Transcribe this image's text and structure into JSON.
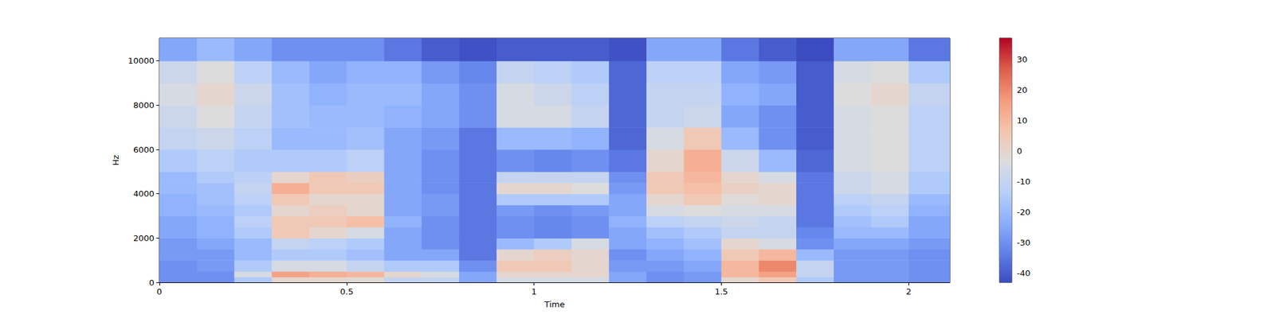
{
  "chart_data": {
    "type": "spectrogram",
    "x_label": "Time",
    "y_label": "Hz",
    "xlim": [
      0,
      2.11
    ],
    "ylim": [
      0,
      11025
    ],
    "xticks": [
      0,
      0.5,
      1,
      1.5,
      2
    ],
    "yticks": [
      0,
      2000,
      4000,
      6000,
      8000,
      10000
    ],
    "grid": false,
    "time_edges": [
      0,
      0.1,
      0.2,
      0.3,
      0.4,
      0.5,
      0.6,
      0.7,
      0.8,
      0.9,
      1.0,
      1.1,
      1.2,
      1.3,
      1.4,
      1.5,
      1.6,
      1.7,
      1.8,
      1.9,
      2.0,
      2.11
    ],
    "freq_edges": [
      0,
      250,
      500,
      1000,
      1500,
      2000,
      2500,
      3000,
      3500,
      4000,
      4500,
      5000,
      6000,
      7000,
      8000,
      9000,
      10000,
      11025
    ],
    "cells": [
      [
        -30,
        -30,
        -30,
        -28,
        -28,
        -25,
        -25,
        -22,
        -22,
        -20,
        -20,
        -15,
        -10,
        -8,
        -5,
        -8,
        -25
      ],
      [
        -30,
        -30,
        -28,
        -28,
        -25,
        -22,
        -22,
        -20,
        -18,
        -18,
        -15,
        -12,
        -8,
        -3,
        0,
        -3,
        -20
      ],
      [
        -15,
        -5,
        -15,
        -20,
        -20,
        -15,
        -12,
        -15,
        -12,
        -10,
        -12,
        -15,
        -12,
        -10,
        -8,
        -12,
        -25
      ],
      [
        0,
        15,
        -5,
        -15,
        -10,
        5,
        5,
        0,
        5,
        12,
        0,
        -15,
        -20,
        -18,
        -18,
        -20,
        -30
      ],
      [
        0,
        12,
        -5,
        -15,
        -12,
        0,
        5,
        3,
        0,
        5,
        5,
        -15,
        -20,
        -20,
        -22,
        -25,
        -30
      ],
      [
        -2,
        10,
        -10,
        -18,
        -15,
        -5,
        8,
        0,
        0,
        5,
        3,
        -12,
        -18,
        -20,
        -20,
        -22,
        -30
      ],
      [
        -10,
        0,
        -15,
        -25,
        -25,
        -25,
        -22,
        -25,
        -25,
        -25,
        -25,
        -25,
        -25,
        -22,
        -20,
        -22,
        -35
      ],
      [
        -10,
        -5,
        -15,
        -25,
        -30,
        -30,
        -30,
        -28,
        -28,
        -30,
        -30,
        -30,
        -28,
        -25,
        -25,
        -28,
        -40
      ],
      [
        -25,
        -25,
        -30,
        -35,
        -35,
        -35,
        -35,
        -35,
        -35,
        -35,
        -35,
        -35,
        -35,
        -30,
        -30,
        -32,
        -42
      ],
      [
        -5,
        0,
        5,
        0,
        -20,
        -30,
        -30,
        -28,
        -15,
        0,
        -10,
        -30,
        -20,
        -5,
        -5,
        -10,
        -40
      ],
      [
        -5,
        0,
        5,
        3,
        -15,
        -32,
        -32,
        -30,
        -15,
        0,
        -10,
        -32,
        -20,
        -5,
        -8,
        -12,
        -40
      ],
      [
        -5,
        0,
        0,
        0,
        -5,
        -30,
        -30,
        -28,
        -15,
        -3,
        -10,
        -30,
        -22,
        -10,
        -12,
        -15,
        -40
      ],
      [
        -25,
        -25,
        -28,
        -30,
        -25,
        -25,
        -22,
        -25,
        -25,
        -28,
        -30,
        -35,
        -38,
        -38,
        -38,
        -38,
        -42
      ],
      [
        -30,
        -30,
        -28,
        -25,
        -22,
        -18,
        -12,
        -5,
        0,
        5,
        5,
        0,
        -5,
        -10,
        -10,
        -12,
        -25
      ],
      [
        -28,
        -28,
        -25,
        -22,
        -18,
        -15,
        -10,
        -3,
        5,
        8,
        10,
        12,
        5,
        -8,
        -10,
        -12,
        -25
      ],
      [
        0,
        10,
        10,
        5,
        0,
        -10,
        -8,
        -5,
        -2,
        2,
        0,
        -8,
        -20,
        -25,
        -22,
        -25,
        -35
      ],
      [
        5,
        15,
        20,
        10,
        -5,
        -10,
        -10,
        -5,
        0,
        0,
        -5,
        -20,
        -30,
        -30,
        -25,
        -28,
        -40
      ],
      [
        -15,
        -10,
        -10,
        -20,
        -30,
        -32,
        -35,
        -35,
        -35,
        -35,
        -35,
        -38,
        -40,
        -40,
        -40,
        -40,
        -43
      ],
      [
        -28,
        -28,
        -28,
        -28,
        -25,
        -20,
        -18,
        -15,
        -12,
        -8,
        -8,
        -5,
        -5,
        -5,
        -3,
        -5,
        -25
      ],
      [
        -28,
        -28,
        -28,
        -28,
        -25,
        -20,
        -15,
        -12,
        -10,
        -5,
        -5,
        -3,
        -3,
        -3,
        0,
        -3,
        -25
      ],
      [
        -30,
        -30,
        -30,
        -30,
        -28,
        -25,
        -25,
        -22,
        -20,
        -15,
        -15,
        -12,
        -12,
        -12,
        -10,
        -15,
        -35
      ]
    ],
    "colorbar": {
      "range": [
        -43,
        37
      ],
      "ticks": [
        -40,
        -30,
        -20,
        -10,
        0,
        10,
        20,
        30
      ]
    }
  }
}
